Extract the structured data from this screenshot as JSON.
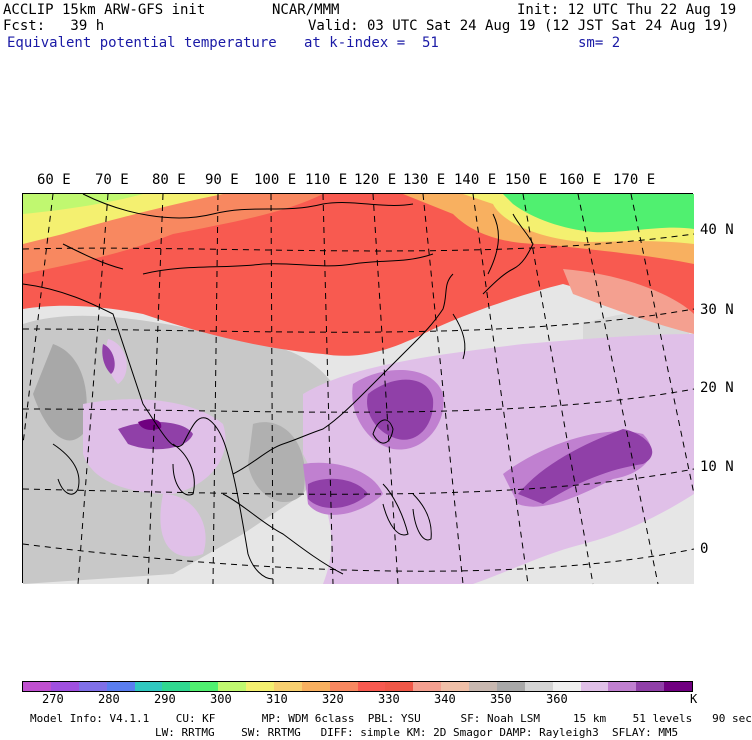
{
  "header": {
    "line1_left": "ACCLIP 15km ARW-GFS init",
    "line1_center": "NCAR/MMM",
    "line1_right": "Init: 12 UTC Thu 22 Aug 19",
    "line2_left": "Fcst:   39 h",
    "line2_right": "Valid: 03 UTC Sat 24 Aug 19 (12 JST Sat 24 Aug 19)",
    "line3_left": "Equivalent potential temperature",
    "line3_center": "at k-index =  51",
    "line3_right": "sm= 2"
  },
  "longitude_labels": [
    "60 E",
    "70 E",
    "80 E",
    "90 E",
    "100 E",
    "110 E",
    "120 E",
    "130 E",
    "140 E",
    "150 E",
    "160 E",
    "170 E"
  ],
  "latitude_labels": [
    "40 N",
    "30 N",
    "20 N",
    "10 N",
    "0"
  ],
  "colorbar": {
    "colors": [
      "#c050d0",
      "#a050e0",
      "#8070e8",
      "#5a7ef0",
      "#30c8c0",
      "#30d890",
      "#50f070",
      "#c0f870",
      "#f4f070",
      "#f8d070",
      "#f8b060",
      "#f88860",
      "#f85a50",
      "#f05848",
      "#f4a090",
      "#f0c0a8",
      "#c8b8b0",
      "#a8a8a8",
      "#d4d4d4",
      "#f0f0f0",
      "#e0c0e8",
      "#c080d0",
      "#9040a8",
      "#700080"
    ],
    "tick_labels": [
      "270",
      "280",
      "290",
      "300",
      "310",
      "320",
      "330",
      "340",
      "350",
      "360"
    ],
    "unit": "K"
  },
  "model_info": {
    "line1": "Model Info: V4.1.1    CU: KF       MP: WDM 6class  PBL: YSU      SF: Noah LSM     15 km    51 levels   90 sec",
    "line2": "LW: RRTMG    SW: RRTMG   DIFF: simple KM: 2D Smagor DAMP: Rayleigh3  SFLAY: MM5"
  }
}
